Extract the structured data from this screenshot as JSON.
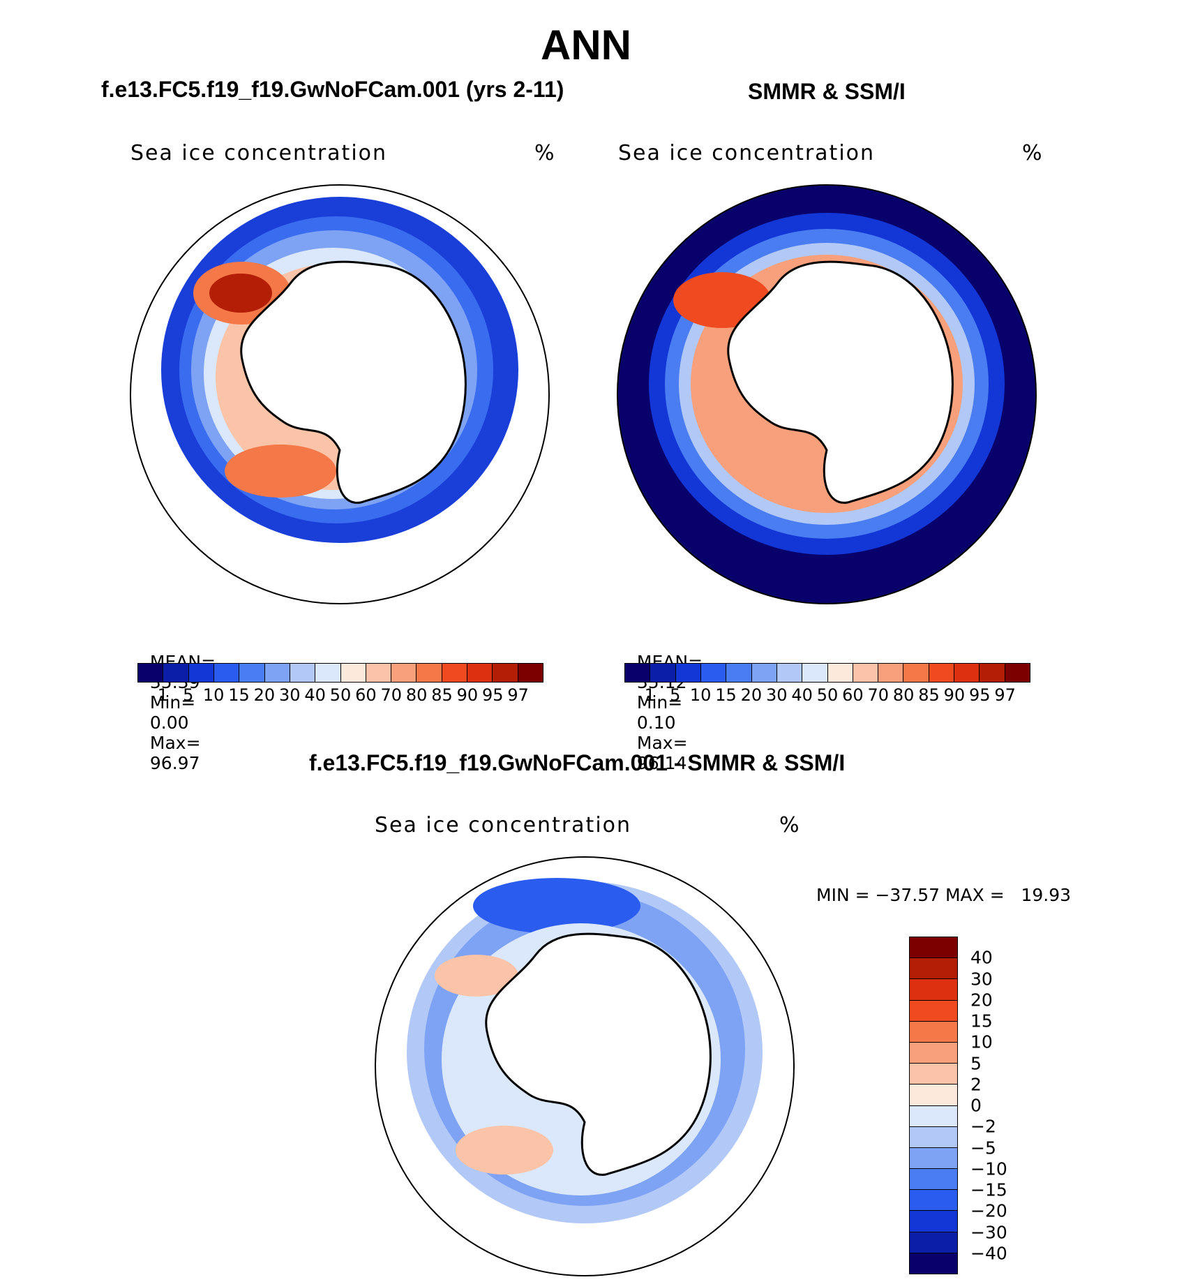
{
  "title": "ANN",
  "panels": [
    {
      "case_title": "f.e13.FC5.f19_f19.GwNoFCam.001 (yrs 2-11)",
      "variable": "Sea ice concentration",
      "units": "%",
      "stats": {
        "mean_label": "MEAN=",
        "mean": "35.39",
        "min_label": "Min=",
        "min": "0.00",
        "max_label": "Max=",
        "max": "96.97"
      }
    },
    {
      "case_title": "SMMR & SSM/I",
      "variable": "Sea ice concentration",
      "units": "%",
      "stats": {
        "mean_label": "MEAN=",
        "mean": "35.12",
        "min_label": "Min=",
        "min": "0.10",
        "max_label": "Max=",
        "max": "96.14"
      }
    },
    {
      "case_title": "f.e13.FC5.f19_f19.GwNoFCam.001 - SMMR & SSM/I",
      "variable": "Sea ice concentration",
      "units": "%",
      "stats_text": "MIN = −37.57 MAX =   19.93"
    }
  ],
  "colorbar_abs": {
    "levels": [
      "1",
      "5",
      "10",
      "15",
      "20",
      "30",
      "40",
      "50",
      "60",
      "70",
      "80",
      "85",
      "90",
      "95",
      "97"
    ],
    "colors": [
      "#08006b",
      "#0a1ea8",
      "#1237d6",
      "#2a5cf0",
      "#4a7cf2",
      "#7ea2f4",
      "#b2c8f7",
      "#dbe8fb",
      "#fde9dc",
      "#fbc4a8",
      "#f7a07b",
      "#f47848",
      "#f04b20",
      "#dc3010",
      "#b51e06",
      "#7d0000"
    ]
  },
  "colorbar_diff": {
    "levels": [
      "40",
      "30",
      "20",
      "15",
      "10",
      "5",
      "2",
      "0",
      "−2",
      "−5",
      "−10",
      "−15",
      "−20",
      "−30",
      "−40"
    ],
    "colors": [
      "#7d0000",
      "#b51e06",
      "#dc3010",
      "#f04b20",
      "#f47848",
      "#f7a07b",
      "#fbc4a8",
      "#fde9dc",
      "#dbe8fb",
      "#b2c8f7",
      "#7ea2f4",
      "#4a7cf2",
      "#2a5cf0",
      "#1237d6",
      "#0a1ea8",
      "#08006b"
    ]
  },
  "map_colors": {
    "model": [
      "#1a3fd8",
      "#3a6cf0",
      "#7ea2f4",
      "#dbe8fb",
      "#fbc4a8",
      "#f47848",
      "#b51e06"
    ],
    "obs": [
      "#08006b",
      "#1237d6",
      "#4a7cf2",
      "#b2c8f7",
      "#f7a07b",
      "#f04b20"
    ],
    "diff": [
      "#7ea2f4",
      "#4a7cf2",
      "#b2c8f7",
      "#dbe8fb",
      "#fbc4a8",
      "#2a5cf0"
    ]
  }
}
